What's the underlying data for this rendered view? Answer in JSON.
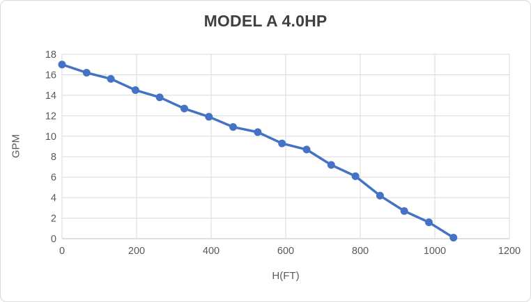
{
  "window": {
    "background_color": "#ffffff",
    "border_color": "#d9d9d9"
  },
  "colors": {
    "title_text": "#404040",
    "axis_title_text": "#595959",
    "tick_label_text": "#595959",
    "gridline": "#d9d9d9",
    "axis_line": "#bfbfbf",
    "series_blue": "#4472C4"
  },
  "chart_data": {
    "type": "line",
    "title": "MODEL A 4.0HP",
    "xlabel": "H(FT)",
    "ylabel": "GPM",
    "xlim": [
      0,
      1200
    ],
    "ylim": [
      0,
      18
    ],
    "x_ticks": [
      0,
      200,
      400,
      600,
      800,
      1000,
      1200
    ],
    "y_ticks": [
      0,
      2,
      4,
      6,
      8,
      10,
      12,
      14,
      16,
      18
    ],
    "grid": true,
    "legend_position": "none",
    "series": [
      {
        "name": "MODEL A 4.0HP",
        "color": "#4472C4",
        "marker": "circle",
        "x": [
          0,
          66,
          131,
          197,
          262,
          328,
          394,
          459,
          525,
          590,
          656,
          722,
          787,
          853,
          918,
          984,
          1050
        ],
        "y": [
          17.0,
          16.2,
          15.6,
          14.5,
          13.8,
          12.7,
          11.9,
          10.9,
          10.4,
          9.3,
          8.7,
          7.2,
          6.1,
          4.2,
          2.7,
          1.6,
          0.1
        ]
      }
    ]
  }
}
